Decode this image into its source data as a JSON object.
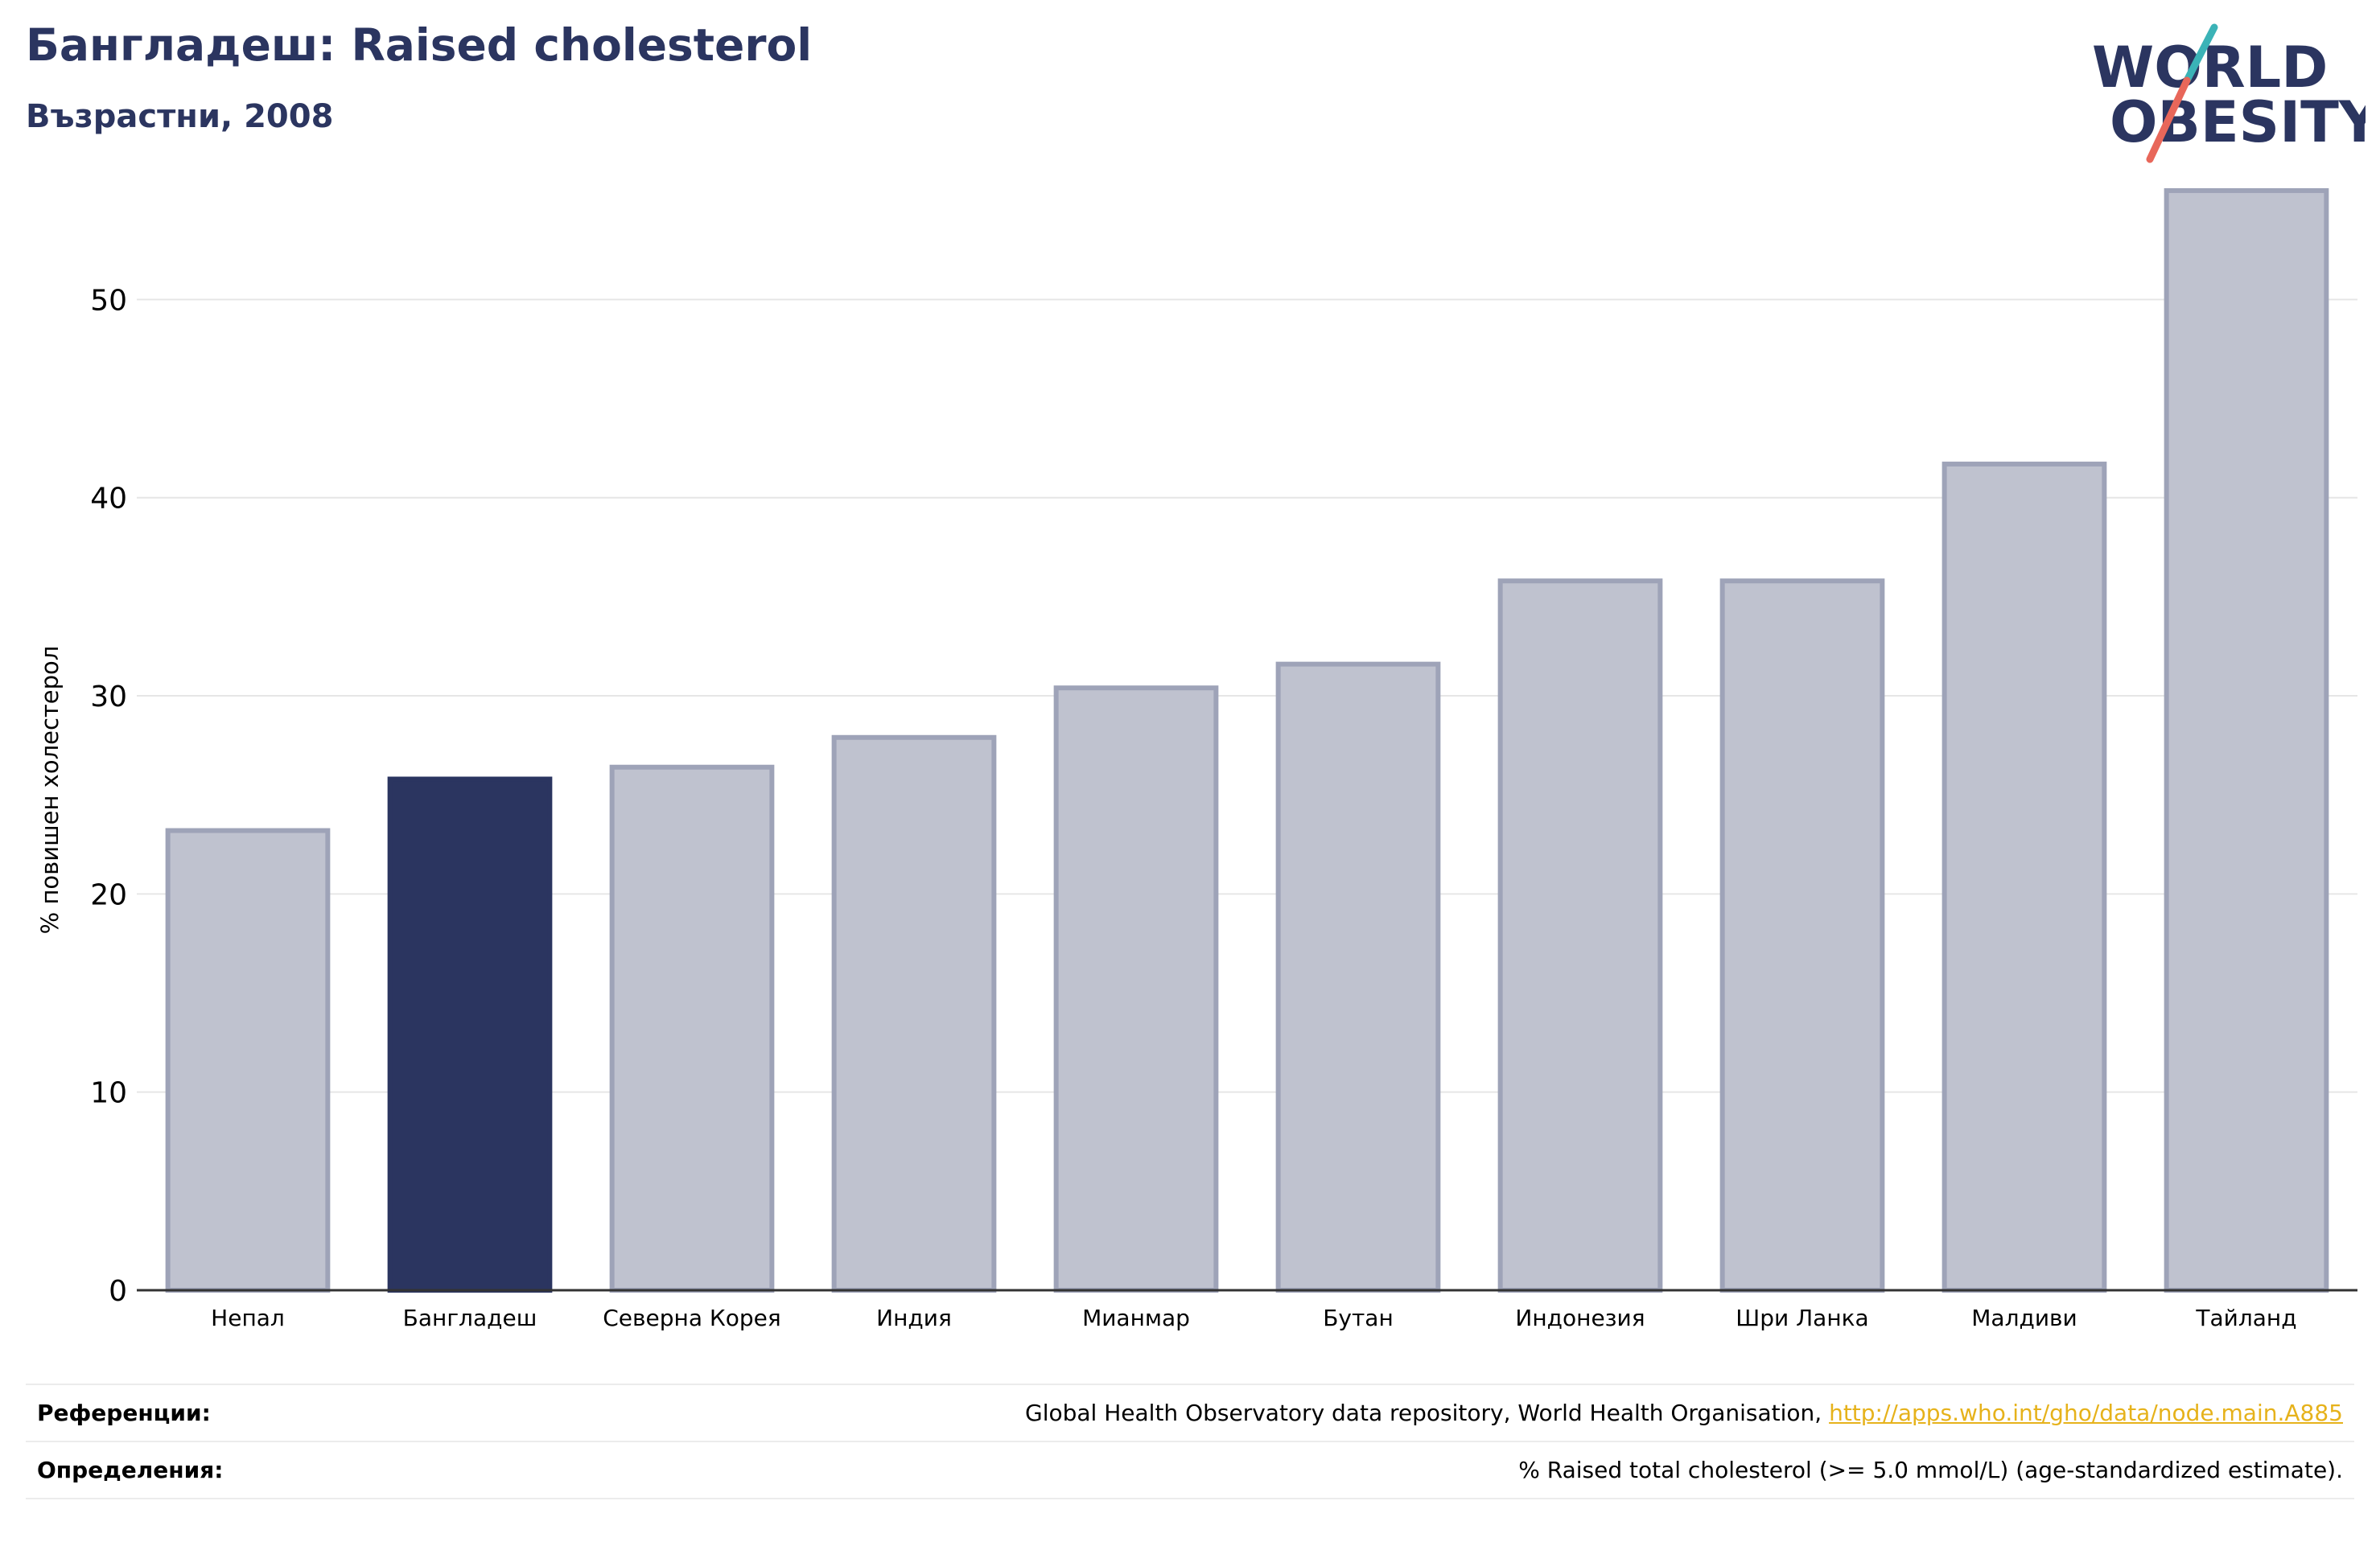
{
  "header": {
    "title": "Бангладеш: Raised cholesterol",
    "subtitle": "Възрастни, 2008"
  },
  "logo": {
    "line1": "WORLD",
    "line2": "OBESITY",
    "text_color": "#2b3560",
    "slash_top_color": "#3bb3b7",
    "slash_bottom_color": "#e8675a"
  },
  "chart_data": {
    "type": "bar",
    "title": "Бангладеш: Raised cholesterol",
    "subtitle": "Възрастни, 2008",
    "xlabel": "",
    "ylabel": "% повишен холестерол",
    "categories": [
      "Непал",
      "Бангладеш",
      "Северна Корея",
      "Индия",
      "Мианмар",
      "Бутан",
      "Индонезия",
      "Шри Ланка",
      "Малдиви",
      "Тайланд"
    ],
    "values": [
      23.2,
      25.8,
      26.4,
      27.9,
      30.4,
      31.6,
      35.8,
      35.8,
      41.7,
      55.5
    ],
    "highlight_index": 1,
    "ylim": [
      0,
      57
    ],
    "yticks": [
      0,
      10,
      20,
      30,
      40,
      50
    ],
    "grid": true,
    "colors": {
      "bar": "#bfc2cf",
      "bar_edge": "#9ea3b8",
      "highlight": "#2b3560",
      "grid": "#e6e6e6",
      "axis": "#333333"
    }
  },
  "footer": {
    "references_label": "Референции:",
    "references_text": "Global Health Observatory data repository, World Health Organisation, ",
    "references_link": "http://apps.who.int/gho/data/node.main.A885",
    "definitions_label": "Определения:",
    "definitions_text": "% Raised total cholesterol (>= 5.0 mmol/L) (age-standardized estimate)."
  }
}
